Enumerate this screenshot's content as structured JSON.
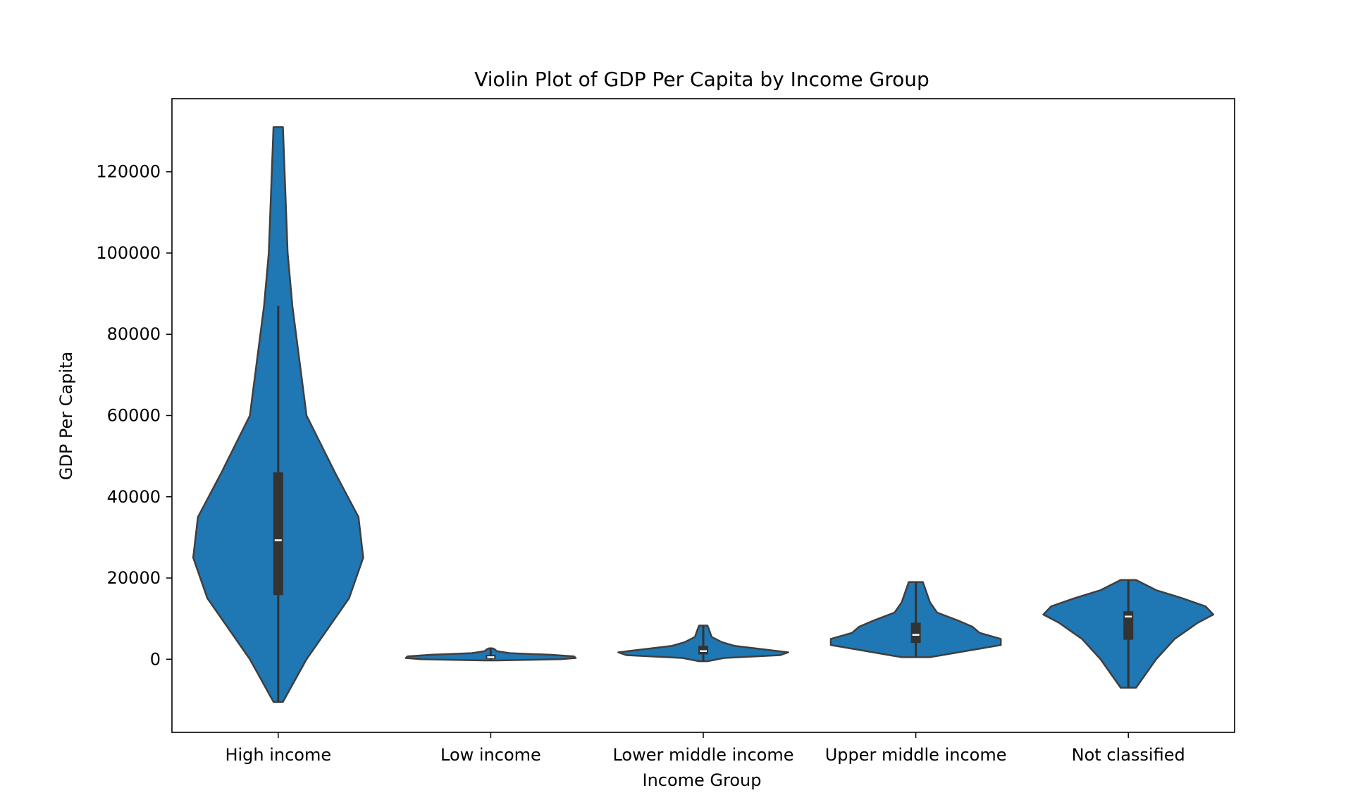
{
  "chart_data": {
    "type": "violin",
    "title": "Violin Plot of GDP Per Capita by Income Group",
    "xlabel": "Income Group",
    "ylabel": "GDP Per Capita",
    "ylim": [
      -18000,
      138000
    ],
    "yticks": [
      0,
      20000,
      40000,
      60000,
      80000,
      100000,
      120000
    ],
    "categories": [
      "High income",
      "Low income",
      "Lower middle income",
      "Upper middle income",
      "Not classified"
    ],
    "colors": {
      "fill": "#1f77b4",
      "outline": "#3f3f3f",
      "box": "#333333",
      "median": "#ffffff",
      "frame": "#000000"
    },
    "grid": false,
    "series": [
      {
        "name": "High income",
        "min": -10500,
        "max": 131000,
        "q1": 15800,
        "median": 29300,
        "q3": 46000,
        "whisker_low": -10500,
        "whisker_high": 87000,
        "profile": [
          [
            -10500,
            0.001
          ],
          [
            0,
            0.006
          ],
          [
            15000,
            0.015
          ],
          [
            25000,
            0.018
          ],
          [
            35000,
            0.017
          ],
          [
            46000,
            0.012
          ],
          [
            60000,
            0.006
          ],
          [
            87000,
            0.003
          ],
          [
            100000,
            0.002
          ],
          [
            131000,
            0.001
          ]
        ]
      },
      {
        "name": "Low income",
        "min": -300,
        "max": 2700,
        "q1": 100,
        "median": 500,
        "q3": 1100,
        "whisker_low": -300,
        "whisker_high": 2700,
        "profile": [
          [
            -300,
            0.08
          ],
          [
            0,
            0.82
          ],
          [
            300,
            1.0
          ],
          [
            700,
            0.98
          ],
          [
            1100,
            0.7
          ],
          [
            1500,
            0.22
          ],
          [
            2000,
            0.07
          ],
          [
            2400,
            0.05
          ],
          [
            2700,
            0.02
          ]
        ]
      },
      {
        "name": "Lower middle income",
        "min": -500,
        "max": 8300,
        "q1": 1200,
        "median": 2000,
        "q3": 3300,
        "whisker_low": -500,
        "whisker_high": 8300,
        "profile": [
          [
            -500,
            0.02
          ],
          [
            300,
            0.1
          ],
          [
            1000,
            0.37
          ],
          [
            1700,
            0.41
          ],
          [
            2500,
            0.28
          ],
          [
            3300,
            0.15
          ],
          [
            4200,
            0.09
          ],
          [
            5500,
            0.04
          ],
          [
            7000,
            0.03
          ],
          [
            8300,
            0.02
          ]
        ]
      },
      {
        "name": "Upper middle income",
        "min": 500,
        "max": 19000,
        "q1": 4000,
        "median": 6000,
        "q3": 9000,
        "whisker_low": 500,
        "whisker_high": 19000,
        "profile": [
          [
            500,
            0.02
          ],
          [
            2000,
            0.07
          ],
          [
            3500,
            0.12
          ],
          [
            5000,
            0.12
          ],
          [
            6500,
            0.09
          ],
          [
            8000,
            0.08
          ],
          [
            9500,
            0.06
          ],
          [
            11500,
            0.03
          ],
          [
            14000,
            0.02
          ],
          [
            19000,
            0.01
          ]
        ]
      },
      {
        "name": "Not classified",
        "min": -7000,
        "max": 19500,
        "q1": 4800,
        "median": 10500,
        "q3": 11800,
        "whisker_low": -7000,
        "whisker_high": 19500,
        "profile": [
          [
            -7000,
            0.005
          ],
          [
            0,
            0.018
          ],
          [
            5000,
            0.03
          ],
          [
            9000,
            0.045
          ],
          [
            11000,
            0.055
          ],
          [
            13000,
            0.05
          ],
          [
            15000,
            0.035
          ],
          [
            17000,
            0.018
          ],
          [
            19500,
            0.005
          ]
        ]
      }
    ]
  }
}
